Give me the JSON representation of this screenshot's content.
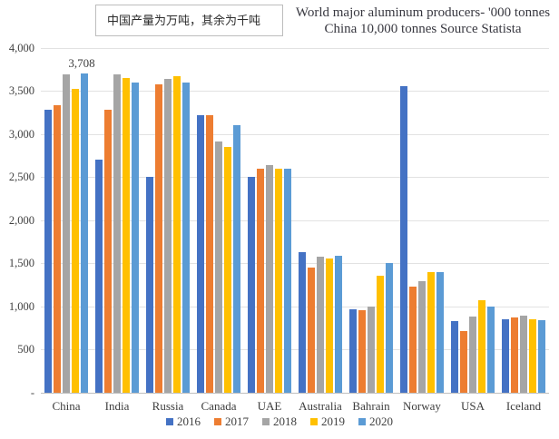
{
  "annotation": {
    "text": "中国产量为万吨，其余为千吨"
  },
  "chart_data": {
    "type": "bar",
    "title": "World major aluminum producers- '000 tonnes China 10,000 tonnes Source Statista",
    "title_line1": "World major aluminum producers- '000 tonnes",
    "title_line2": "China 10,000 tonnes Source Statista",
    "categories": [
      "China",
      "India",
      "Russia",
      "Canada",
      "UAE",
      "Australia",
      "Bahrain",
      "Norway",
      "USA",
      "Iceland"
    ],
    "series": [
      {
        "name": "2016",
        "color": "#4472C4",
        "values": [
          3280,
          2700,
          2500,
          3220,
          2500,
          1630,
          970,
          3560,
          830,
          850
        ]
      },
      {
        "name": "2017",
        "color": "#ED7D31",
        "values": [
          3340,
          3280,
          3580,
          3220,
          2600,
          1450,
          960,
          1230,
          720,
          870
        ]
      },
      {
        "name": "2018",
        "color": "#A5A5A5",
        "values": [
          3690,
          3695,
          3640,
          2920,
          2640,
          1580,
          1005,
          1290,
          880,
          895
        ]
      },
      {
        "name": "2019",
        "color": "#FFC000",
        "values": [
          3530,
          3650,
          3670,
          2850,
          2600,
          1560,
          1360,
          1405,
          1075,
          855
        ]
      },
      {
        "name": "2020",
        "color": "#5B9BD5",
        "values": [
          3708,
          3605,
          3605,
          3100,
          2600,
          1590,
          1500,
          1395,
          1000,
          845
        ]
      }
    ],
    "data_labels": [
      {
        "category": "China",
        "series": "2020",
        "text": "3,708"
      }
    ],
    "ylim": [
      0,
      4000
    ],
    "yticks": [
      {
        "value": 0,
        "label": "-"
      },
      {
        "value": 500,
        "label": "500"
      },
      {
        "value": 1000,
        "label": "1,000"
      },
      {
        "value": 1500,
        "label": "1,500"
      },
      {
        "value": 2000,
        "label": "2,000"
      },
      {
        "value": 2500,
        "label": "2,500"
      },
      {
        "value": 3000,
        "label": "3,000"
      },
      {
        "value": 3500,
        "label": "3,500"
      },
      {
        "value": 4000,
        "label": "4,000"
      }
    ],
    "grid": true,
    "legend_position": "bottom"
  },
  "colors": {
    "background": "#ffffff",
    "gridline": "#e2e2e2",
    "axis_line": "#bfbfbf",
    "text": "#404040"
  }
}
